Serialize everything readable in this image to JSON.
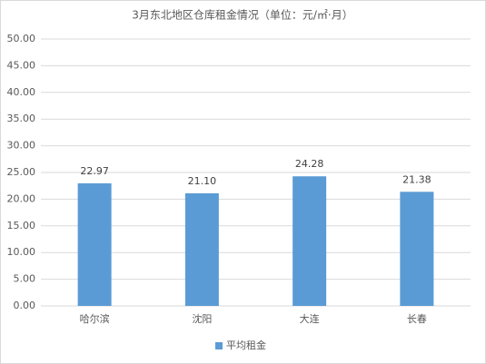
{
  "chart_data": {
    "type": "bar",
    "title": "3月东北地区仓库租金情况（单位：元/㎡·月）",
    "categories": [
      "哈尔滨",
      "沈阳",
      "大连",
      "长春"
    ],
    "series": [
      {
        "name": "平均租金",
        "color": "#5b9bd5",
        "values": [
          22.97,
          21.1,
          24.28,
          21.38
        ],
        "value_labels": [
          "22.97",
          "21.10",
          "24.28",
          "21.38"
        ]
      }
    ],
    "ylim": [
      0,
      50
    ],
    "yticks": [
      {
        "value": 0,
        "label": "0.00"
      },
      {
        "value": 5,
        "label": "5.00"
      },
      {
        "value": 10,
        "label": "10.00"
      },
      {
        "value": 15,
        "label": "15.00"
      },
      {
        "value": 20,
        "label": "20.00"
      },
      {
        "value": 25,
        "label": "25.00"
      },
      {
        "value": 30,
        "label": "30.00"
      },
      {
        "value": 35,
        "label": "35.00"
      },
      {
        "value": 40,
        "label": "40.00"
      },
      {
        "value": 45,
        "label": "45.00"
      },
      {
        "value": 50,
        "label": "50.00"
      }
    ],
    "grid": true,
    "legend": "bottom"
  }
}
